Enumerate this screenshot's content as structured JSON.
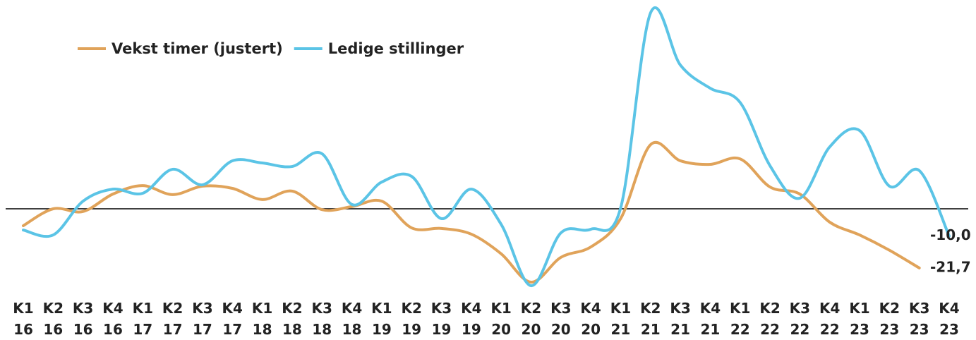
{
  "chart_data": {
    "type": "line",
    "categories": [
      "K1 16",
      "K2 16",
      "K3 16",
      "K4 16",
      "K1 17",
      "K2 17",
      "K3 17",
      "K4 17",
      "K1 18",
      "K2 18",
      "K3 18",
      "K4 18",
      "K1 19",
      "K2 19",
      "K3 19",
      "K4 19",
      "K1 20",
      "K2 20",
      "K3 20",
      "K4 20",
      "K1 21",
      "K2 21",
      "K3 21",
      "K4 21",
      "K1 22",
      "K2 22",
      "K3 22",
      "K4 22",
      "K1 23",
      "K2 23",
      "K3 23",
      "K4 23"
    ],
    "series": [
      {
        "name": "Vekst timer (justert)",
        "color": "#e0a35a",
        "values": [
          -6.2,
          0,
          -1,
          5.4,
          8.5,
          5.2,
          8.3,
          7.5,
          3.4,
          6.5,
          -0.3,
          0.8,
          2.8,
          -7,
          -7.2,
          -9.3,
          -16.5,
          -26.9,
          -17.8,
          -14,
          -3.6,
          23.5,
          17.6,
          16.3,
          18.3,
          8,
          5.4,
          -4.9,
          -9.6,
          -15.2,
          -21.7,
          null
        ],
        "value_labels": [
          null,
          null,
          null,
          null,
          null,
          null,
          null,
          null,
          null,
          null,
          null,
          null,
          null,
          null,
          null,
          null,
          null,
          null,
          null,
          null,
          null,
          null,
          null,
          null,
          null,
          null,
          null,
          null,
          null,
          null,
          "-21,7",
          null
        ]
      },
      {
        "name": "Ledige stillinger",
        "color": "#5bc4e6",
        "values": [
          -7.8,
          -9.6,
          2.8,
          7.2,
          5.7,
          14.5,
          8.8,
          17.6,
          16.8,
          15.5,
          20.2,
          1.6,
          9.8,
          11.9,
          -3.6,
          7.2,
          -5.7,
          -28.2,
          -8.8,
          -7.5,
          0.3,
          71.8,
          52.7,
          44.2,
          39,
          15.8,
          3.9,
          22.7,
          28.7,
          8.3,
          14,
          -10
        ],
        "value_labels": [
          null,
          null,
          null,
          null,
          null,
          null,
          null,
          null,
          null,
          null,
          null,
          null,
          null,
          null,
          null,
          null,
          null,
          null,
          null,
          null,
          null,
          null,
          null,
          null,
          null,
          null,
          null,
          null,
          null,
          null,
          null,
          "-10,0"
        ]
      }
    ],
    "ylim": [
      -30,
      75
    ],
    "legend": "top-left"
  }
}
